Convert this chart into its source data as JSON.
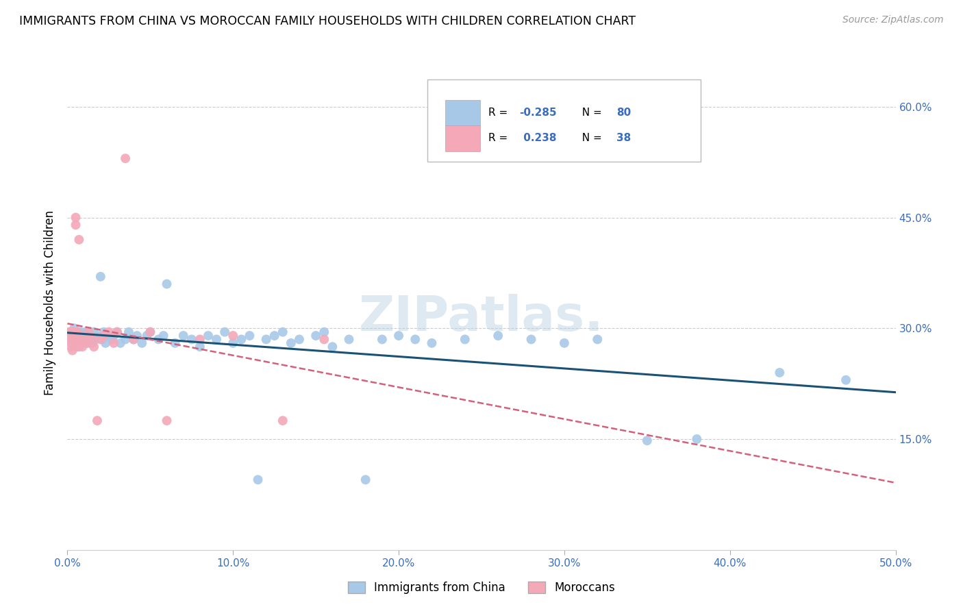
{
  "title": "IMMIGRANTS FROM CHINA VS MOROCCAN FAMILY HOUSEHOLDS WITH CHILDREN CORRELATION CHART",
  "source": "Source: ZipAtlas.com",
  "ylabel": "Family Households with Children",
  "xlim": [
    0.0,
    0.5
  ],
  "ylim": [
    0.0,
    0.67
  ],
  "xticks": [
    0.0,
    0.1,
    0.2,
    0.3,
    0.4,
    0.5
  ],
  "xtick_labels": [
    "0.0%",
    "10.0%",
    "20.0%",
    "30.0%",
    "40.0%",
    "50.0%"
  ],
  "ytick_positions": [
    0.15,
    0.3,
    0.45,
    0.6
  ],
  "ytick_labels": [
    "15.0%",
    "30.0%",
    "45.0%",
    "60.0%"
  ],
  "blue_color": "#a8c8e8",
  "pink_color": "#f4a8b8",
  "blue_line_color": "#1a5276",
  "pink_line_color": "#d4607a",
  "legend_label_blue": "Immigrants from China",
  "legend_label_pink": "Moroccans",
  "watermark": "ZIPatlas.",
  "blue_x": [
    0.001,
    0.002,
    0.002,
    0.003,
    0.003,
    0.004,
    0.004,
    0.005,
    0.005,
    0.006,
    0.006,
    0.007,
    0.007,
    0.008,
    0.008,
    0.009,
    0.01,
    0.01,
    0.011,
    0.012,
    0.012,
    0.013,
    0.014,
    0.015,
    0.016,
    0.017,
    0.018,
    0.02,
    0.021,
    0.022,
    0.023,
    0.025,
    0.027,
    0.028,
    0.03,
    0.032,
    0.035,
    0.037,
    0.04,
    0.042,
    0.045,
    0.048,
    0.05,
    0.055,
    0.058,
    0.06,
    0.065,
    0.07,
    0.075,
    0.08,
    0.085,
    0.09,
    0.095,
    0.1,
    0.105,
    0.11,
    0.115,
    0.12,
    0.125,
    0.13,
    0.135,
    0.14,
    0.15,
    0.155,
    0.16,
    0.17,
    0.18,
    0.19,
    0.2,
    0.21,
    0.22,
    0.24,
    0.26,
    0.28,
    0.3,
    0.32,
    0.35,
    0.38,
    0.43,
    0.47
  ],
  "blue_y": [
    0.29,
    0.285,
    0.295,
    0.28,
    0.295,
    0.285,
    0.3,
    0.275,
    0.29,
    0.285,
    0.295,
    0.275,
    0.29,
    0.285,
    0.295,
    0.28,
    0.29,
    0.285,
    0.295,
    0.28,
    0.295,
    0.285,
    0.29,
    0.28,
    0.295,
    0.285,
    0.29,
    0.37,
    0.285,
    0.295,
    0.28,
    0.29,
    0.285,
    0.29,
    0.295,
    0.28,
    0.285,
    0.295,
    0.285,
    0.29,
    0.28,
    0.29,
    0.295,
    0.285,
    0.29,
    0.36,
    0.28,
    0.29,
    0.285,
    0.275,
    0.29,
    0.285,
    0.295,
    0.28,
    0.285,
    0.29,
    0.095,
    0.285,
    0.29,
    0.295,
    0.28,
    0.285,
    0.29,
    0.295,
    0.275,
    0.285,
    0.095,
    0.285,
    0.29,
    0.285,
    0.28,
    0.285,
    0.29,
    0.285,
    0.28,
    0.285,
    0.148,
    0.15,
    0.24,
    0.23
  ],
  "pink_x": [
    0.001,
    0.001,
    0.002,
    0.002,
    0.003,
    0.003,
    0.003,
    0.004,
    0.004,
    0.005,
    0.005,
    0.005,
    0.006,
    0.006,
    0.007,
    0.007,
    0.008,
    0.009,
    0.01,
    0.011,
    0.012,
    0.013,
    0.015,
    0.016,
    0.018,
    0.02,
    0.022,
    0.025,
    0.028,
    0.03,
    0.035,
    0.04,
    0.05,
    0.06,
    0.08,
    0.1,
    0.13,
    0.155
  ],
  "pink_y": [
    0.285,
    0.295,
    0.275,
    0.29,
    0.285,
    0.295,
    0.27,
    0.28,
    0.295,
    0.44,
    0.45,
    0.285,
    0.295,
    0.275,
    0.42,
    0.285,
    0.29,
    0.275,
    0.285,
    0.29,
    0.28,
    0.295,
    0.285,
    0.275,
    0.175,
    0.285,
    0.29,
    0.295,
    0.28,
    0.295,
    0.53,
    0.285,
    0.295,
    0.175,
    0.285,
    0.29,
    0.175,
    0.285
  ]
}
